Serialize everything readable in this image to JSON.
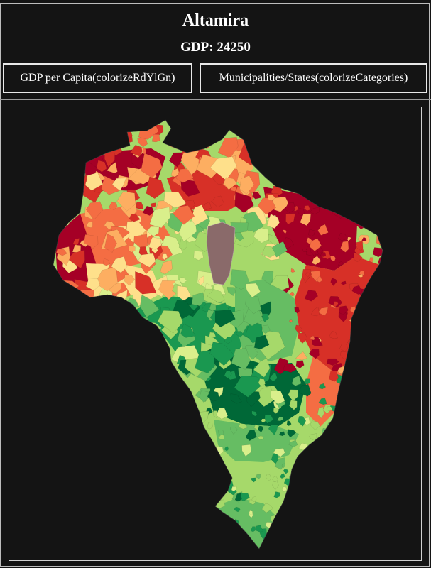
{
  "header": {
    "title": "Altamira",
    "subtitle": "GDP: 24250"
  },
  "controls": {
    "gdp_button_label": "GDP per Capita(colorizeRdYlGn)",
    "categories_button_label": "Municipalities/States(colorizeCategories)"
  },
  "map": {
    "selected_municipality": "Altamira",
    "color_scheme": "RdYlGn",
    "palette": [
      "#a50026",
      "#d73027",
      "#f46d43",
      "#fdae61",
      "#fee08b",
      "#d9ef8b",
      "#a6d96a",
      "#66bd63",
      "#1a9850",
      "#006837"
    ],
    "highlight_color": "#8a6a6a",
    "background": "#141414"
  }
}
